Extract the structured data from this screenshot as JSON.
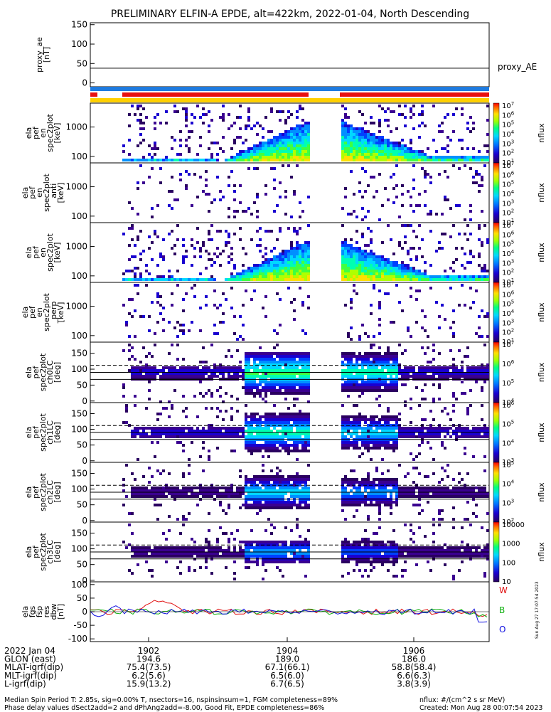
{
  "title": "PRELIMINARY ELFIN-A EPDE, alt=422km, 2022-01-04, North Descending",
  "colors": {
    "bar_blue": "#1e7be0",
    "bar_red": "#e81010",
    "bar_yellow": "#ffd000",
    "line_W": "#e01010",
    "line_B": "#10b010",
    "line_O": "#1010e0"
  },
  "chart_data": [
    {
      "type": "line",
      "ylabel": [
        "proxy_ae",
        "[nT]"
      ],
      "yticks": [
        0,
        50,
        100,
        150
      ],
      "ylim": [
        -10,
        155
      ],
      "legend": "proxy_AE",
      "series": [
        {
          "name": "proxy_AE",
          "value": 38
        }
      ]
    },
    {
      "type": "heatmap",
      "ylabel": [
        "ela",
        "pef",
        "en",
        "spec2plot",
        "[keV]"
      ],
      "yticks": [
        {
          "label": "1000",
          "v": 1000
        },
        {
          "label": "100",
          "v": 100
        }
      ],
      "ylog": true,
      "ylim": [
        60,
        6500
      ],
      "colorbar": {
        "label": "nflux",
        "ticks": [
          "10^1",
          "10^2",
          "10^3",
          "10^4",
          "10^5",
          "10^6",
          "10^7"
        ]
      }
    },
    {
      "type": "heatmap",
      "ylabel": [
        "ela",
        "pef",
        "en",
        "spec2plot",
        "_anti",
        "[keV]"
      ],
      "yticks": [
        {
          "label": "1000",
          "v": 1000
        },
        {
          "label": "100",
          "v": 100
        }
      ],
      "ylog": true,
      "ylim": [
        60,
        6500
      ],
      "colorbar": {
        "label": "nflux",
        "ticks": [
          "10^1",
          "10^2",
          "10^3",
          "10^4",
          "10^5",
          "10^6",
          "10^7"
        ]
      }
    },
    {
      "type": "heatmap",
      "ylabel": [
        "ela",
        "pef",
        "en",
        "spec2plot",
        "[keV]"
      ],
      "yticks": [
        {
          "label": "1000",
          "v": 1000
        },
        {
          "label": "100",
          "v": 100
        }
      ],
      "ylog": true,
      "ylim": [
        60,
        6500
      ],
      "colorbar": {
        "label": "nflux",
        "ticks": [
          "10^1",
          "10^2",
          "10^3",
          "10^4",
          "10^5",
          "10^6",
          "10^7"
        ]
      }
    },
    {
      "type": "heatmap",
      "ylabel": [
        "ela",
        "pef",
        "en",
        "spec2plot",
        "_perp",
        "[keV]"
      ],
      "yticks": [
        {
          "label": "1000",
          "v": 1000
        },
        {
          "label": "100",
          "v": 100
        }
      ],
      "ylog": true,
      "ylim": [
        60,
        6500
      ],
      "colorbar": {
        "label": "nflux",
        "ticks": [
          "10^1",
          "10^2",
          "10^3",
          "10^4",
          "10^5",
          "10^6",
          "10^7"
        ]
      }
    },
    {
      "type": "heatmap",
      "ylabel": [
        "ela",
        "pef",
        "spec2plot",
        "ch0LC",
        "[deg]"
      ],
      "yticks": [
        {
          "label": "150",
          "v": 150
        },
        {
          "label": "100",
          "v": 100
        },
        {
          "label": "50",
          "v": 50
        },
        {
          "label": "0",
          "v": 0
        }
      ],
      "ylim": [
        -5,
        185
      ],
      "colorbar": {
        "label": "nflux",
        "ticks": [
          "10^4",
          "10^5",
          "10^6",
          "10^7"
        ]
      }
    },
    {
      "type": "heatmap",
      "ylabel": [
        "ela",
        "pef",
        "spec2plot",
        "ch1LC",
        "[deg]"
      ],
      "yticks": [
        {
          "label": "150",
          "v": 150
        },
        {
          "label": "100",
          "v": 100
        },
        {
          "label": "50",
          "v": 50
        },
        {
          "label": "0",
          "v": 0
        }
      ],
      "ylim": [
        -5,
        185
      ],
      "colorbar": {
        "label": "nflux",
        "ticks": [
          "10^3",
          "10^4",
          "10^5",
          "10^6"
        ]
      }
    },
    {
      "type": "heatmap",
      "ylabel": [
        "ela",
        "pef",
        "spec2plot",
        "ch2LC",
        "[deg]"
      ],
      "yticks": [
        {
          "label": "150",
          "v": 150
        },
        {
          "label": "100",
          "v": 100
        },
        {
          "label": "50",
          "v": 50
        },
        {
          "label": "0",
          "v": 0
        }
      ],
      "ylim": [
        -5,
        185
      ],
      "colorbar": {
        "label": "nflux",
        "ticks": [
          "10^2",
          "10^3",
          "10^4",
          "10^5"
        ]
      }
    },
    {
      "type": "heatmap",
      "ylabel": [
        "ela",
        "pef",
        "spec2plot",
        "ch3LC",
        "[deg]"
      ],
      "yticks": [
        {
          "label": "150",
          "v": 150
        },
        {
          "label": "100",
          "v": 100
        },
        {
          "label": "50",
          "v": 50
        },
        {
          "label": "0",
          "v": 0
        }
      ],
      "ylim": [
        -5,
        185
      ],
      "colorbar": {
        "label": "nflux",
        "ticks": [
          "10",
          "100",
          "1000",
          "10000"
        ]
      }
    },
    {
      "type": "line",
      "ylabel": [
        "ela",
        "fgs",
        "fsp",
        "res",
        "dbw",
        "[nT]"
      ],
      "yticks": [
        {
          "label": "100",
          "v": 100
        },
        {
          "label": "50",
          "v": 50
        },
        {
          "label": "0",
          "v": 0
        },
        {
          "label": "-50",
          "v": -50
        },
        {
          "label": "-100",
          "v": -100
        }
      ],
      "ylim": [
        -110,
        110
      ],
      "legend": [
        "W",
        "B",
        "O"
      ],
      "series": [
        {
          "name": "W"
        },
        {
          "name": "B"
        },
        {
          "name": "O"
        }
      ]
    }
  ],
  "xaxis": {
    "ticks": [
      "1902",
      "1904",
      "1906"
    ],
    "rows": [
      {
        "label": "2022 Jan 04",
        "values": [
          "1902",
          "1904",
          "1906"
        ]
      },
      {
        "label": "GLON (east)",
        "values": [
          "194.6",
          "189.0",
          "186.0"
        ]
      },
      {
        "label": "MLAT-igrf(dip)",
        "values": [
          "75.4(73.5)",
          "67.1(66.1)",
          "58.8(58.4)"
        ]
      },
      {
        "label": "MLT-igrf(dip)",
        "values": [
          "6.2(5.6)",
          "6.5(6.0)",
          "6.6(6.3)"
        ]
      },
      {
        "label": "L-igrf(dip)",
        "values": [
          "15.9(13.2)",
          "6.7(6.5)",
          "3.8(3.9)"
        ]
      }
    ]
  },
  "footer": {
    "left1": "Median Spin Period T: 2.85s, sig=0.00% T, nsectors=16, nspinsinsum=1, FGM completeness=89%",
    "left2": "Phase delay values dSect2add=2 and dPhAng2add=-8.00, Good Fit, EPDE completeness=86%",
    "right1": "nflux: #/(cm^2 s sr MeV)",
    "right2": "Created: Mon Aug 28 00:07:54 2023",
    "side": "Sun Aug 27 17:07:54 2023"
  }
}
